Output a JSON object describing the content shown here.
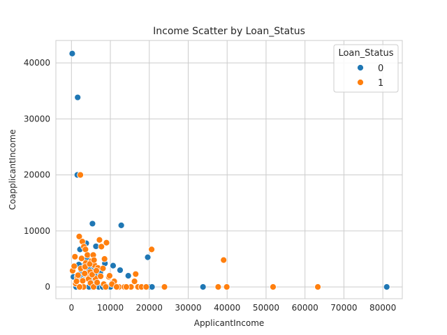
{
  "chart_data": {
    "type": "scatter",
    "title": "Income Scatter by Loan_Status",
    "xlabel": "ApplicantIncome",
    "ylabel": "CoapplicantIncome",
    "xlim": [
      -4000,
      85000
    ],
    "ylim": [
      -2100,
      44000
    ],
    "xticks": [
      0,
      10000,
      20000,
      30000,
      40000,
      50000,
      60000,
      70000,
      80000
    ],
    "yticks": [
      0,
      10000,
      20000,
      30000,
      40000
    ],
    "grid": true,
    "legend": {
      "title": "Loan_Status",
      "position": "top-right",
      "entries": [
        "0",
        "1"
      ]
    },
    "series": [
      {
        "name": "0",
        "color": "#1f77b4",
        "points": [
          [
            200,
            41667
          ],
          [
            1600,
            33837
          ],
          [
            1500,
            20000
          ],
          [
            5400,
            11300
          ],
          [
            12800,
            11000
          ],
          [
            19600,
            5300
          ],
          [
            6300,
            7250
          ],
          [
            3800,
            7800
          ],
          [
            2200,
            6700
          ],
          [
            500,
            1800
          ],
          [
            1200,
            0
          ],
          [
            2000,
            1300
          ],
          [
            2500,
            3000
          ],
          [
            3000,
            3800
          ],
          [
            3300,
            0
          ],
          [
            3500,
            2000
          ],
          [
            4000,
            5300
          ],
          [
            4200,
            2600
          ],
          [
            4700,
            1200
          ],
          [
            5000,
            0
          ],
          [
            5500,
            3500
          ],
          [
            6000,
            2000
          ],
          [
            6500,
            1000
          ],
          [
            7000,
            0
          ],
          [
            7400,
            2500
          ],
          [
            8000,
            0
          ],
          [
            8600,
            4200
          ],
          [
            9300,
            0
          ],
          [
            10000,
            0
          ],
          [
            10700,
            3800
          ],
          [
            12500,
            3000
          ],
          [
            14600,
            2000
          ],
          [
            20200,
            0
          ],
          [
            20700,
            0
          ],
          [
            33800,
            0
          ],
          [
            81000,
            0
          ],
          [
            4500,
            0
          ],
          [
            2700,
            1500
          ],
          [
            3900,
            4200
          ],
          [
            5200,
            1700
          ],
          [
            6100,
            3800
          ],
          [
            2900,
            2300
          ],
          [
            1900,
            4000
          ],
          [
            4600,
            3000
          ],
          [
            5800,
            1000
          ]
        ]
      },
      {
        "name": "1",
        "color": "#ff7f0e",
        "points": [
          [
            300,
            2900
          ],
          [
            700,
            3700
          ],
          [
            900,
            5400
          ],
          [
            1500,
            1800
          ],
          [
            2000,
            9000
          ],
          [
            2300,
            20000
          ],
          [
            2800,
            8100
          ],
          [
            3200,
            7200
          ],
          [
            3600,
            6700
          ],
          [
            3700,
            4300
          ],
          [
            4100,
            5700
          ],
          [
            4300,
            1800
          ],
          [
            4800,
            2700
          ],
          [
            5100,
            4600
          ],
          [
            5600,
            5700
          ],
          [
            5900,
            3900
          ],
          [
            6200,
            1500
          ],
          [
            6800,
            3400
          ],
          [
            7200,
            8400
          ],
          [
            7700,
            7200
          ],
          [
            8100,
            3300
          ],
          [
            8500,
            5000
          ],
          [
            9000,
            7900
          ],
          [
            9600,
            1800
          ],
          [
            11000,
            1000
          ],
          [
            12200,
            0
          ],
          [
            13600,
            0
          ],
          [
            15300,
            0
          ],
          [
            16200,
            1000
          ],
          [
            16500,
            2300
          ],
          [
            17100,
            0
          ],
          [
            18000,
            0
          ],
          [
            19200,
            0
          ],
          [
            20600,
            6700
          ],
          [
            23900,
            0
          ],
          [
            37700,
            0
          ],
          [
            39100,
            4800
          ],
          [
            39900,
            0
          ],
          [
            51800,
            0
          ],
          [
            63300,
            0
          ],
          [
            1100,
            600
          ],
          [
            1700,
            2100
          ],
          [
            2400,
            3300
          ],
          [
            2600,
            5100
          ],
          [
            3100,
            0
          ],
          [
            3400,
            2400
          ],
          [
            4400,
            1400
          ],
          [
            4900,
            700
          ],
          [
            5300,
            2200
          ],
          [
            5700,
            0
          ],
          [
            6400,
            2900
          ],
          [
            6600,
            800
          ],
          [
            7500,
            1900
          ],
          [
            8300,
            500
          ],
          [
            8800,
            0
          ],
          [
            9800,
            2000
          ],
          [
            10400,
            500
          ],
          [
            11600,
            0
          ],
          [
            14100,
            0
          ],
          [
            2100,
            0
          ],
          [
            2900,
            1100
          ],
          [
            3500,
            3600
          ],
          [
            1300,
            1000
          ],
          [
            4700,
            4100
          ],
          [
            5800,
            4800
          ]
        ]
      }
    ]
  }
}
